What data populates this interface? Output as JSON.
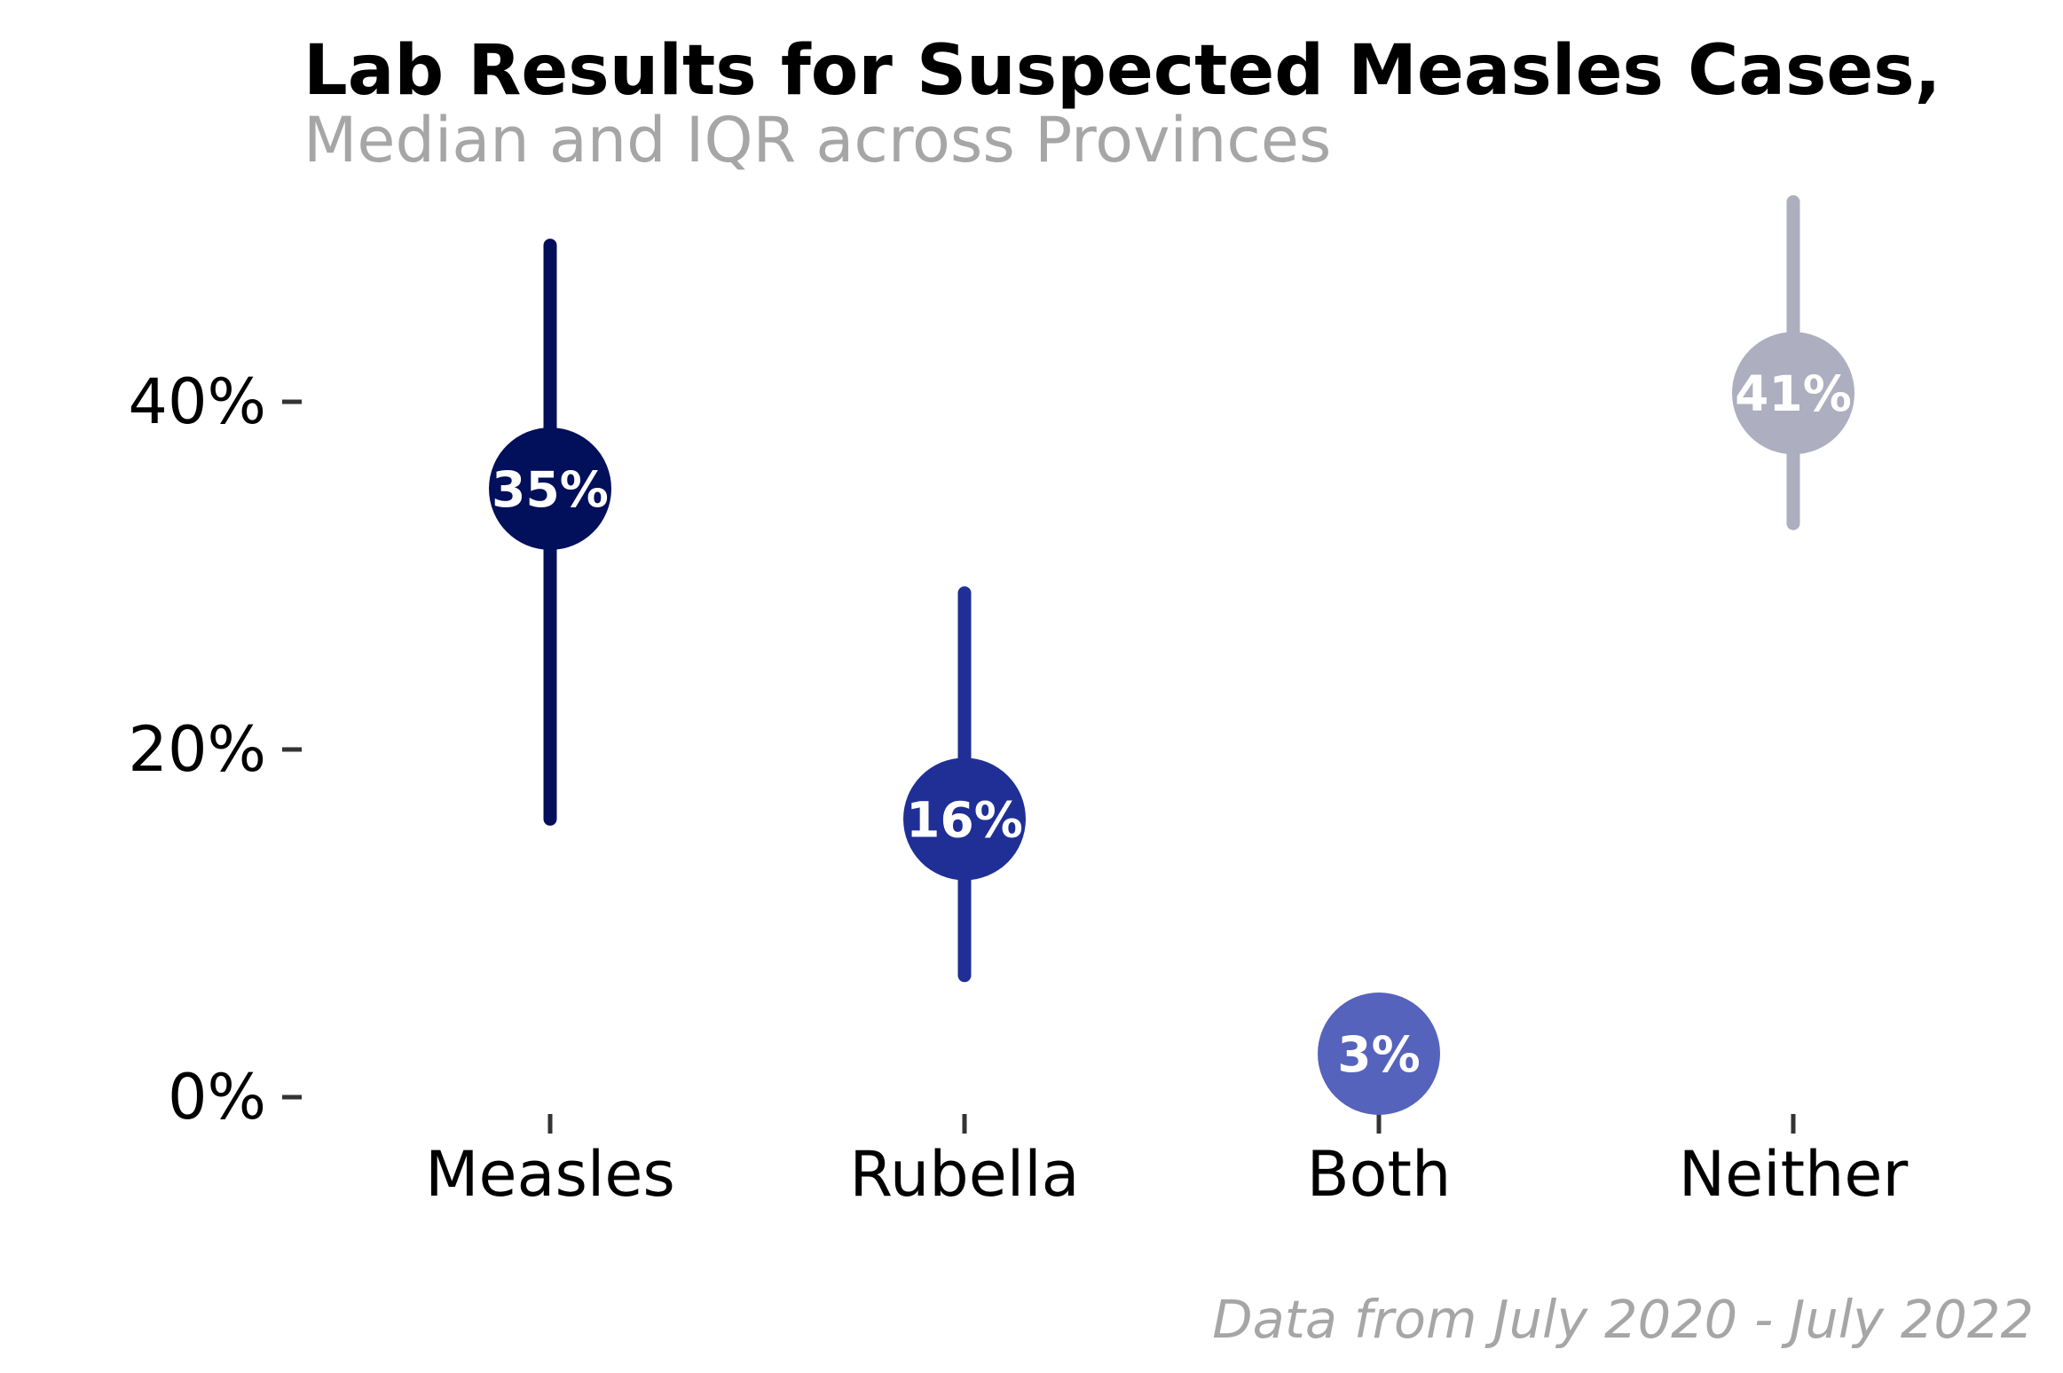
{
  "chart_data": {
    "type": "scatter",
    "title": "Lab Results for Suspected Measles Cases,",
    "subtitle": "Median and IQR across Provinces",
    "caption": "Data from July 2020 - July 2022",
    "categories": [
      "Measles",
      "Rubella",
      "Both",
      "Neither"
    ],
    "series": [
      {
        "points": [
          {
            "category": "Measles",
            "median": 35,
            "q1": 16,
            "q3": 49,
            "label": "35%",
            "color": "#020f5a"
          },
          {
            "category": "Rubella",
            "median": 16,
            "q1": 7,
            "q3": 29,
            "label": "16%",
            "color": "#1f2f96"
          },
          {
            "category": "Both",
            "median": 2.5,
            "q1": 2.5,
            "q3": 2.5,
            "label": "3%",
            "color": "#5563bd"
          },
          {
            "category": "Neither",
            "median": 40.5,
            "q1": 33,
            "q3": 51.5,
            "label": "41%",
            "color": "#adaebf"
          }
        ]
      }
    ],
    "yticks": [
      0,
      20,
      40
    ],
    "ytick_labels": [
      "0%",
      "20%",
      "40%"
    ],
    "ylim": [
      0,
      52
    ],
    "grid": false,
    "legend": "none"
  }
}
